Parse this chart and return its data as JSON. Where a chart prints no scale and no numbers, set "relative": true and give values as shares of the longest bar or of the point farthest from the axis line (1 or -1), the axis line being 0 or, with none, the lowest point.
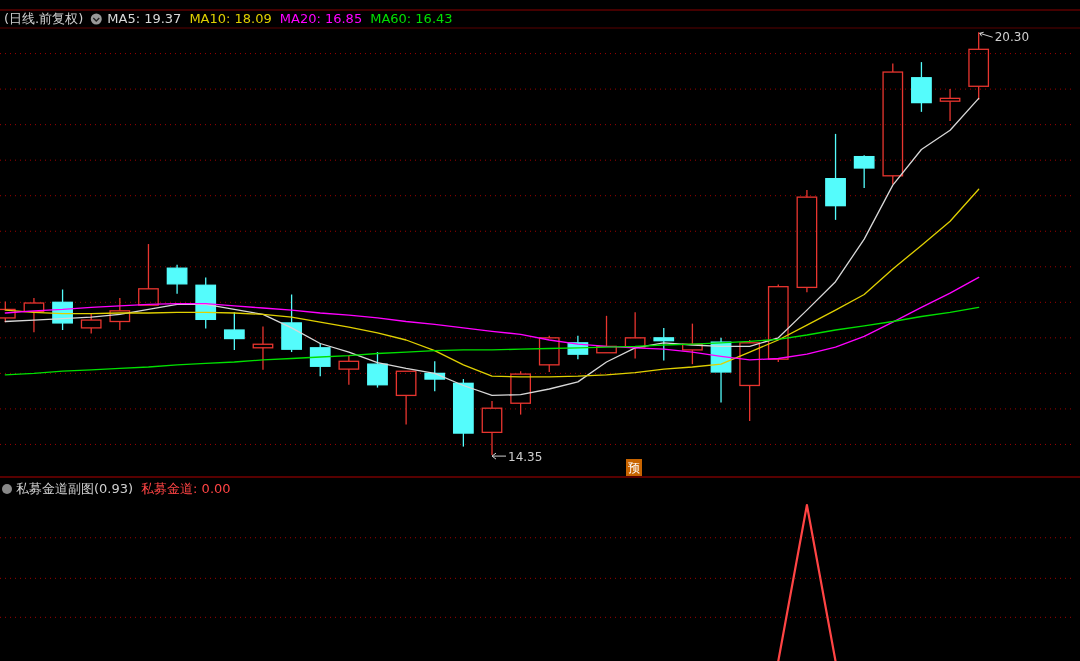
{
  "chart_data": [
    {
      "type": "candlestick",
      "title": "(日线.前复权)",
      "categories": [
        null,
        null,
        null,
        null,
        null,
        null,
        null,
        null,
        null,
        null,
        null,
        null,
        null,
        null,
        null,
        null,
        null,
        null,
        null,
        null,
        null,
        null,
        null,
        null,
        null,
        null,
        null,
        null,
        null,
        null,
        null,
        null,
        null,
        null,
        null
      ],
      "ohlc": [
        [
          16.28,
          16.51,
          16.22,
          16.4
        ],
        [
          16.37,
          16.56,
          16.08,
          16.49
        ],
        [
          16.5,
          16.68,
          16.11,
          16.21
        ],
        [
          16.14,
          16.35,
          16.06,
          16.25
        ],
        [
          16.23,
          16.56,
          16.11,
          16.38
        ],
        [
          16.46,
          17.32,
          16.46,
          16.69
        ],
        [
          16.98,
          17.03,
          16.62,
          16.76
        ],
        [
          16.74,
          16.85,
          16.13,
          16.26
        ],
        [
          16.11,
          16.36,
          15.83,
          15.99
        ],
        [
          15.86,
          16.16,
          15.55,
          15.91
        ],
        [
          16.21,
          16.61,
          15.8,
          15.84
        ],
        [
          15.86,
          15.92,
          15.46,
          15.6
        ],
        [
          15.56,
          15.75,
          15.34,
          15.67
        ],
        [
          15.63,
          15.8,
          15.3,
          15.34
        ],
        [
          15.19,
          15.53,
          14.78,
          15.53
        ],
        [
          15.5,
          15.67,
          15.25,
          15.42
        ],
        [
          15.36,
          15.42,
          14.47,
          14.66
        ],
        [
          14.67,
          15.11,
          14.35,
          15.01
        ],
        [
          15.08,
          15.53,
          14.92,
          15.49
        ],
        [
          15.62,
          16.03,
          15.52,
          16.0
        ],
        [
          15.93,
          16.03,
          15.7,
          15.77
        ],
        [
          15.79,
          16.31,
          15.79,
          15.88
        ],
        [
          15.87,
          16.36,
          15.71,
          16.0
        ],
        [
          16.0,
          16.14,
          15.68,
          15.96
        ],
        [
          15.83,
          16.2,
          15.63,
          15.91
        ],
        [
          15.94,
          16.0,
          15.09,
          15.52
        ],
        [
          15.33,
          15.97,
          14.83,
          15.93
        ],
        [
          15.7,
          16.75,
          15.66,
          16.72
        ],
        [
          16.71,
          18.08,
          16.64,
          17.98
        ],
        [
          18.24,
          18.87,
          17.66,
          17.86
        ],
        [
          18.55,
          18.57,
          18.11,
          18.39
        ],
        [
          18.28,
          19.86,
          18.16,
          19.74
        ],
        [
          19.66,
          19.88,
          19.18,
          19.31
        ],
        [
          19.33,
          19.5,
          19.05,
          19.37
        ],
        [
          19.54,
          20.3,
          19.35,
          20.06
        ]
      ],
      "series": [
        {
          "name": "MA5: 19.37",
          "type": "line",
          "color": "#d8d8d8",
          "values": [
            16.23,
            16.25,
            16.27,
            16.29,
            16.33,
            16.4,
            16.47,
            16.47,
            16.4,
            16.33,
            16.14,
            15.92,
            15.8,
            15.65,
            15.57,
            15.5,
            15.33,
            15.19,
            15.2,
            15.28,
            15.38,
            15.66,
            15.86,
            15.93,
            15.9,
            15.88,
            15.88,
            16.0,
            16.39,
            16.79,
            17.39,
            18.15,
            18.65,
            18.92,
            19.37
          ]
        },
        {
          "name": "MA10: 18.09",
          "type": "line",
          "color": "#e0d000",
          "values": [
            16.39,
            16.36,
            16.34,
            16.34,
            16.35,
            16.35,
            16.36,
            16.36,
            16.35,
            16.33,
            16.29,
            16.22,
            16.15,
            16.07,
            15.97,
            15.82,
            15.62,
            15.46,
            15.45,
            15.45,
            15.46,
            15.48,
            15.51,
            15.56,
            15.59,
            15.63,
            15.8,
            15.97,
            16.18,
            16.39,
            16.61,
            16.97,
            17.3,
            17.64,
            18.09
          ]
        },
        {
          "name": "MA20: 16.85",
          "type": "line",
          "color": "#ff00ff",
          "values": [
            16.35,
            16.38,
            16.4,
            16.43,
            16.45,
            16.47,
            16.48,
            16.48,
            16.45,
            16.42,
            16.39,
            16.35,
            16.32,
            16.28,
            16.23,
            16.19,
            16.14,
            16.09,
            16.05,
            15.97,
            15.91,
            15.88,
            15.86,
            15.84,
            15.8,
            15.74,
            15.69,
            15.71,
            15.77,
            15.87,
            16.02,
            16.22,
            16.43,
            16.63,
            16.85
          ]
        },
        {
          "name": "MA60: 16.43",
          "type": "line",
          "color": "#00e000",
          "values": [
            15.48,
            15.5,
            15.53,
            15.55,
            15.57,
            15.59,
            15.62,
            15.64,
            15.66,
            15.69,
            15.71,
            15.73,
            15.75,
            15.78,
            15.8,
            15.82,
            15.83,
            15.83,
            15.84,
            15.85,
            15.86,
            15.87,
            15.88,
            15.9,
            15.91,
            15.93,
            15.95,
            15.98,
            16.04,
            16.11,
            16.17,
            16.23,
            16.3,
            16.36,
            16.43
          ]
        }
      ],
      "ylim": [
        14.07,
        20.36
      ],
      "yticks": [
        {
          "value": 14.5,
          "label": null
        },
        {
          "value": 15.0,
          "label": null
        },
        {
          "value": 15.5,
          "label": null
        },
        {
          "value": 16.0,
          "label": null
        },
        {
          "value": 16.5,
          "label": null
        },
        {
          "value": 17.0,
          "label": null
        },
        {
          "value": 17.5,
          "label": null
        },
        {
          "value": 18.0,
          "label": null
        },
        {
          "value": 18.5,
          "label": null
        },
        {
          "value": 19.0,
          "label": null
        },
        {
          "value": 19.5,
          "label": null
        },
        {
          "value": 20.0,
          "label": null
        }
      ],
      "grid": "y",
      "tick_labels": false,
      "legend": "top left",
      "annotations": [
        "20.30",
        "14.35",
        "预"
      ]
    },
    {
      "type": "line",
      "title": "私募金道副图(0.93)",
      "categories": [
        null,
        null,
        null,
        null,
        null,
        null,
        null,
        null,
        null,
        null,
        null,
        null,
        null,
        null,
        null,
        null,
        null,
        null,
        null,
        null,
        null,
        null,
        null,
        null,
        null,
        null,
        null,
        null,
        null,
        null,
        null,
        null,
        null,
        null,
        null
      ],
      "series": [
        {
          "name": "私募金道: 0.00",
          "color": "#ff4444",
          "values": [
            null,
            null,
            null,
            null,
            null,
            null,
            null,
            null,
            null,
            null,
            null,
            null,
            null,
            null,
            null,
            null,
            null,
            null,
            null,
            null,
            null,
            null,
            null,
            null,
            null,
            null,
            null,
            0,
            1,
            0,
            null,
            null,
            null,
            null,
            null
          ]
        }
      ],
      "relative": true,
      "tick_labels": false,
      "legend": "top left",
      "ref_lines": [
        {
          "axis": "y",
          "value": 0.79,
          "color": "#a00000",
          "line_style": "dotted"
        },
        {
          "axis": "y",
          "value": 0.53,
          "color": "#a00000",
          "line_style": "dotted"
        },
        {
          "axis": "y",
          "value": 0.28,
          "color": "#a00000",
          "line_style": "dotted"
        }
      ]
    }
  ]
}
